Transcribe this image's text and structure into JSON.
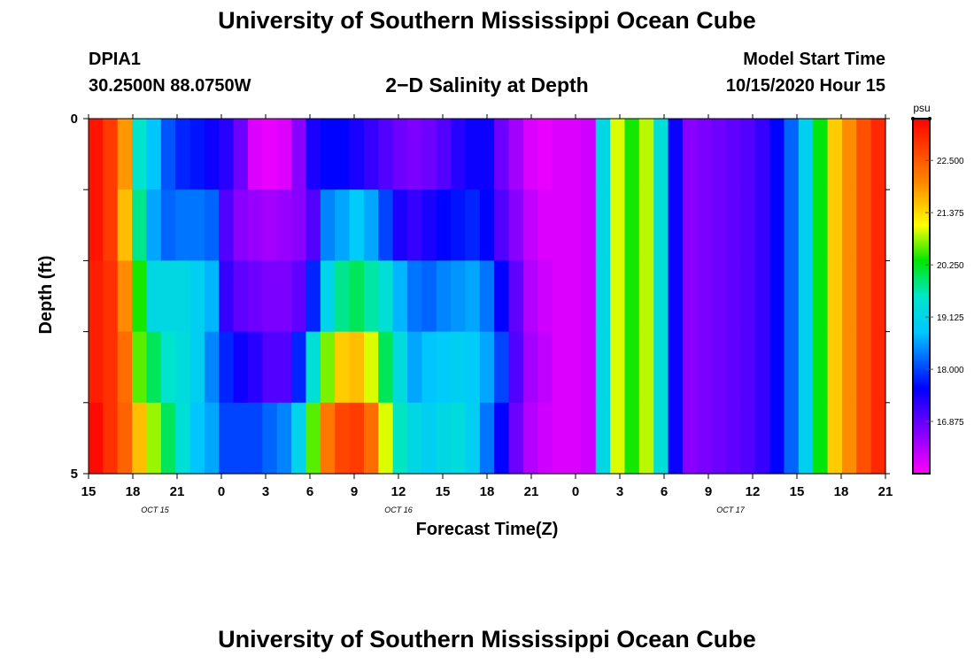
{
  "header": {
    "title": "University of Southern Mississippi Ocean Cube",
    "station_id": "DPIA1",
    "station_coords": "30.2500N 88.0750W",
    "plot_title": "2−D Salinity at Depth",
    "start_label": "Model Start Time",
    "start_value": "10/15/2020 Hour 15"
  },
  "footer": {
    "title": "University of Southern Mississippi Ocean Cube"
  },
  "chart_data": {
    "type": "heatmap",
    "title": "2-D Salinity at Depth",
    "xlabel": "Forecast Time(Z)",
    "ylabel": "Depth (ft)",
    "x_tick_labels": [
      "15",
      "18",
      "21",
      "0",
      "3",
      "6",
      "9",
      "12",
      "15",
      "18",
      "21",
      "0",
      "3",
      "6",
      "9",
      "12",
      "15",
      "18",
      "21"
    ],
    "x_date_labels": [
      {
        "text": "OCT 15",
        "tick_index": 1.5
      },
      {
        "text": "OCT 16",
        "tick_index": 7
      },
      {
        "text": "OCT 17",
        "tick_index": 14.5
      }
    ],
    "y_tick_labels": [
      "0",
      "5"
    ],
    "ylim": [
      0,
      5
    ],
    "colorbar": {
      "unit": "psu",
      "min": 15.75,
      "max": 23.4,
      "tick_labels": [
        "22.500",
        "21.375",
        "20.250",
        "19.125",
        "18.000",
        "16.875"
      ],
      "tick_values": [
        22.5,
        21.375,
        20.25,
        19.125,
        18.0,
        16.875
      ]
    },
    "depth_layers": 5,
    "time_steps": 55,
    "salinity_columns": [
      [
        23.2,
        23.2,
        23.1,
        23.1,
        23.3
      ],
      [
        22.8,
        22.8,
        22.9,
        22.9,
        22.9
      ],
      [
        21.9,
        21.6,
        22.0,
        22.3,
        22.4
      ],
      [
        19.5,
        19.8,
        20.4,
        20.6,
        21.6
      ],
      [
        18.8,
        18.6,
        19.2,
        20.0,
        20.8
      ],
      [
        18.1,
        18.2,
        19.2,
        19.5,
        20.0
      ],
      [
        17.8,
        18.3,
        19.2,
        19.3,
        19.4
      ],
      [
        17.7,
        18.3,
        19.0,
        19.0,
        18.8
      ],
      [
        17.5,
        18.2,
        18.7,
        18.4,
        18.6
      ],
      [
        17.3,
        17.0,
        17.2,
        17.8,
        18.0
      ],
      [
        16.8,
        16.6,
        16.9,
        17.5,
        18.0
      ],
      [
        16.0,
        16.5,
        16.8,
        17.3,
        18.0
      ],
      [
        15.9,
        16.4,
        16.7,
        17.0,
        18.2
      ],
      [
        16.0,
        16.5,
        16.7,
        17.0,
        18.4
      ],
      [
        16.6,
        16.6,
        16.9,
        17.8,
        19.1
      ],
      [
        17.4,
        17.0,
        17.8,
        19.4,
        20.6
      ],
      [
        17.6,
        18.4,
        19.1,
        20.7,
        22.2
      ],
      [
        17.6,
        18.6,
        19.8,
        21.5,
        22.7
      ],
      [
        17.4,
        18.9,
        20.0,
        21.6,
        22.8
      ],
      [
        17.2,
        18.6,
        19.7,
        21.0,
        22.3
      ],
      [
        17.0,
        18.0,
        19.4,
        20.0,
        21.0
      ],
      [
        16.8,
        17.4,
        18.7,
        19.3,
        19.6
      ],
      [
        16.7,
        17.2,
        18.3,
        18.6,
        19.2
      ],
      [
        16.8,
        17.4,
        18.2,
        18.8,
        19.0
      ],
      [
        17.0,
        17.6,
        18.4,
        18.9,
        19.2
      ],
      [
        17.3,
        17.7,
        18.5,
        19.0,
        19.3
      ],
      [
        17.5,
        17.8,
        18.6,
        18.9,
        19.0
      ],
      [
        17.5,
        17.6,
        18.3,
        18.6,
        18.3
      ],
      [
        16.8,
        17.0,
        17.6,
        18.0,
        17.6
      ],
      [
        16.4,
        16.6,
        16.9,
        17.0,
        16.8
      ],
      [
        16.0,
        16.2,
        16.3,
        16.4,
        16.3
      ],
      [
        15.9,
        16.0,
        16.1,
        16.2,
        16.1
      ],
      [
        16.0,
        16.0,
        16.0,
        16.0,
        16.0
      ],
      [
        16.0,
        16.0,
        16.0,
        16.0,
        16.0
      ],
      [
        16.1,
        16.1,
        16.1,
        16.1,
        16.1
      ],
      [
        19.2,
        19.2,
        19.2,
        19.2,
        19.2
      ],
      [
        21.0,
        21.0,
        21.0,
        21.0,
        21.0
      ],
      [
        20.4,
        20.4,
        20.4,
        20.4,
        20.4
      ],
      [
        20.9,
        20.9,
        20.9,
        20.9,
        20.9
      ],
      [
        19.4,
        19.4,
        19.4,
        19.4,
        19.4
      ],
      [
        17.5,
        17.5,
        17.5,
        17.5,
        17.5
      ],
      [
        16.6,
        16.6,
        16.6,
        16.6,
        16.6
      ],
      [
        16.7,
        16.7,
        16.7,
        16.7,
        16.7
      ],
      [
        16.8,
        16.8,
        16.8,
        16.8,
        16.8
      ],
      [
        16.9,
        16.9,
        16.9,
        16.9,
        16.9
      ],
      [
        17.0,
        17.0,
        17.0,
        17.0,
        17.0
      ],
      [
        17.2,
        17.2,
        17.2,
        17.2,
        17.2
      ],
      [
        17.6,
        17.6,
        17.6,
        17.6,
        17.6
      ],
      [
        18.2,
        18.2,
        18.2,
        18.2,
        18.2
      ],
      [
        19.0,
        19.0,
        19.0,
        19.0,
        19.0
      ],
      [
        20.3,
        20.3,
        20.3,
        20.3,
        20.3
      ],
      [
        21.5,
        21.5,
        21.5,
        21.5,
        21.5
      ],
      [
        22.0,
        22.0,
        22.0,
        22.0,
        22.0
      ],
      [
        22.6,
        22.6,
        22.6,
        22.6,
        22.6
      ],
      [
        23.0,
        23.0,
        23.0,
        23.0,
        23.0
      ]
    ]
  }
}
